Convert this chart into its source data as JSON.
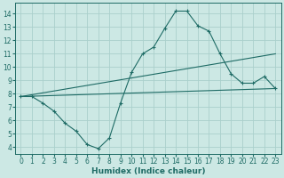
{
  "xlabel": "Humidex (Indice chaleur)",
  "ylabel": "",
  "xlim": [
    -0.5,
    23.5
  ],
  "ylim": [
    3.5,
    14.8
  ],
  "xticks": [
    0,
    1,
    2,
    3,
    4,
    5,
    6,
    7,
    8,
    9,
    10,
    11,
    12,
    13,
    14,
    15,
    16,
    17,
    18,
    19,
    20,
    21,
    22,
    23
  ],
  "yticks": [
    4,
    5,
    6,
    7,
    8,
    9,
    10,
    11,
    12,
    13,
    14
  ],
  "bg_color": "#cce8e4",
  "grid_color": "#aad0cc",
  "line_color": "#1e6b65",
  "line1_x": [
    0,
    1,
    2,
    3,
    4,
    5,
    6,
    7,
    8,
    9,
    10,
    11,
    12,
    13,
    14,
    15,
    16,
    17,
    18,
    19,
    20,
    21,
    22,
    23
  ],
  "line1_y": [
    7.8,
    7.8,
    7.3,
    6.7,
    5.8,
    5.2,
    4.2,
    3.9,
    4.7,
    7.3,
    9.6,
    11.0,
    11.5,
    12.9,
    14.2,
    14.2,
    13.1,
    12.7,
    11.0,
    9.5,
    8.8,
    8.8,
    9.3,
    8.4
  ],
  "line2_x": [
    0,
    23
  ],
  "line2_y": [
    7.8,
    11.0
  ],
  "line3_x": [
    0,
    23
  ],
  "line3_y": [
    7.8,
    8.4
  ],
  "font_size_label": 6.5,
  "font_size_tick": 5.5
}
